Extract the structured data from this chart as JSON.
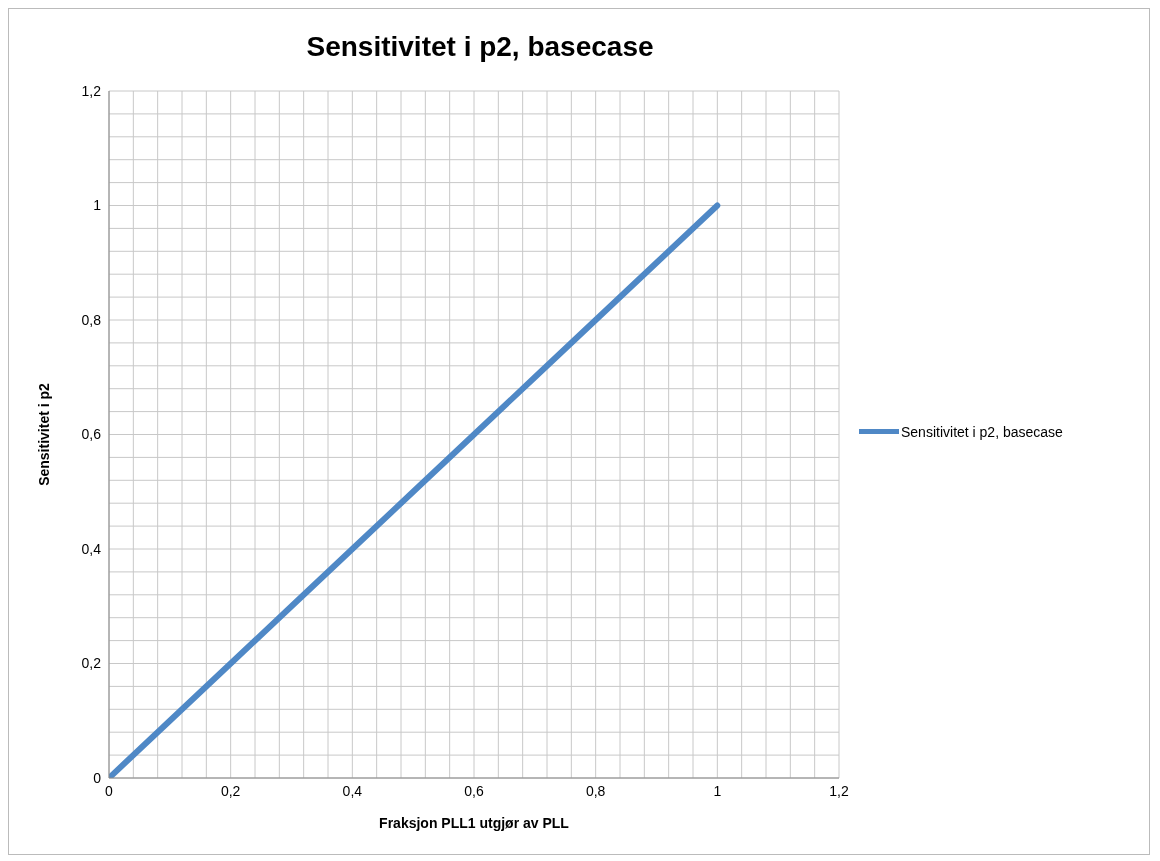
{
  "chart_data": {
    "type": "line",
    "title": "Sensitivitet i p2, basecase",
    "xlabel": "Fraksjon PLL1 utgjør av PLL",
    "ylabel": "Sensitivitet i p2",
    "x": [
      0,
      0.1,
      0.2,
      0.3,
      0.4,
      0.5,
      0.6,
      0.7,
      0.8,
      0.9,
      1
    ],
    "series": [
      {
        "name": "Sensitivitet i p2, basecase",
        "color": "#4f88c6",
        "values": [
          0,
          0.1,
          0.2,
          0.3,
          0.4,
          0.5,
          0.6,
          0.7,
          0.8,
          0.9,
          1
        ]
      }
    ],
    "xlim": [
      0,
      1.2
    ],
    "ylim": [
      0,
      1.2
    ],
    "xticks": [
      0,
      {
        "value": 0.04,
        "label": null
      },
      {
        "value": 0.08,
        "label": null
      },
      {
        "value": 0.12,
        "label": null
      },
      {
        "value": 0.16,
        "label": null
      },
      {
        "value": 0.2,
        "label": "0,2"
      },
      {
        "value": 0.24,
        "label": null
      },
      {
        "value": 0.28,
        "label": null
      },
      {
        "value": 0.32,
        "label": null
      },
      {
        "value": 0.36,
        "label": null
      },
      {
        "value": 0.4,
        "label": "0,4"
      },
      {
        "value": 0.44,
        "label": null
      },
      {
        "value": 0.48,
        "label": null
      },
      {
        "value": 0.52,
        "label": null
      },
      {
        "value": 0.56,
        "label": null
      },
      {
        "value": 0.6,
        "label": "0,6"
      },
      {
        "value": 0.64,
        "label": null
      },
      {
        "value": 0.68,
        "label": null
      },
      {
        "value": 0.72,
        "label": null
      },
      {
        "value": 0.76,
        "label": null
      },
      {
        "value": 0.8,
        "label": "0,8"
      },
      {
        "value": 0.84,
        "label": null
      },
      {
        "value": 0.88,
        "label": null
      },
      {
        "value": 0.92,
        "label": null
      },
      {
        "value": 0.96,
        "label": null
      },
      1,
      {
        "value": 1.04,
        "label": null
      },
      {
        "value": 1.08,
        "label": null
      },
      {
        "value": 1.12,
        "label": null
      },
      {
        "value": 1.16,
        "label": null
      },
      {
        "value": 1.2,
        "label": "1,2"
      }
    ],
    "yticks": [
      0,
      {
        "value": 0.04,
        "label": null
      },
      {
        "value": 0.08,
        "label": null
      },
      {
        "value": 0.12,
        "label": null
      },
      {
        "value": 0.16,
        "label": null
      },
      {
        "value": 0.2,
        "label": "0,2"
      },
      {
        "value": 0.24,
        "label": null
      },
      {
        "value": 0.28,
        "label": null
      },
      {
        "value": 0.32,
        "label": null
      },
      {
        "value": 0.36,
        "label": null
      },
      {
        "value": 0.4,
        "label": "0,4"
      },
      {
        "value": 0.44,
        "label": null
      },
      {
        "value": 0.48,
        "label": null
      },
      {
        "value": 0.52,
        "label": null
      },
      {
        "value": 0.56,
        "label": null
      },
      {
        "value": 0.6,
        "label": "0,6"
      },
      {
        "value": 0.64,
        "label": null
      },
      {
        "value": 0.68,
        "label": null
      },
      {
        "value": 0.72,
        "label": null
      },
      {
        "value": 0.76,
        "label": null
      },
      {
        "value": 0.8,
        "label": "0,8"
      },
      {
        "value": 0.84,
        "label": null
      },
      {
        "value": 0.88,
        "label": null
      },
      {
        "value": 0.92,
        "label": null
      },
      {
        "value": 0.96,
        "label": null
      },
      1,
      {
        "value": 1.04,
        "label": null
      },
      {
        "value": 1.08,
        "label": null
      },
      {
        "value": 1.12,
        "label": null
      },
      {
        "value": 1.16,
        "label": null
      },
      {
        "value": 1.2,
        "label": "1,2"
      }
    ],
    "grid": true,
    "legend": "right",
    "marker": "none",
    "line_style": "solid"
  }
}
